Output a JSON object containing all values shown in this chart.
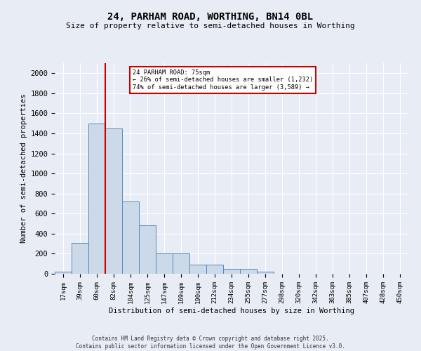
{
  "title": "24, PARHAM ROAD, WORTHING, BN14 0BL",
  "subtitle": "Size of property relative to semi-detached houses in Worthing",
  "xlabel": "Distribution of semi-detached houses by size in Worthing",
  "ylabel": "Number of semi-detached properties",
  "bar_color": "#ccd9e8",
  "bar_edge_color": "#5588bb",
  "background_color": "#e8edf5",
  "grid_color": "#ffffff",
  "categories": [
    "17sqm",
    "39sqm",
    "60sqm",
    "82sqm",
    "104sqm",
    "125sqm",
    "147sqm",
    "169sqm",
    "190sqm",
    "212sqm",
    "234sqm",
    "255sqm",
    "277sqm",
    "298sqm",
    "320sqm",
    "342sqm",
    "363sqm",
    "385sqm",
    "407sqm",
    "428sqm",
    "450sqm"
  ],
  "values": [
    20,
    310,
    1500,
    1450,
    720,
    480,
    200,
    200,
    90,
    90,
    47,
    47,
    20,
    0,
    0,
    0,
    0,
    0,
    0,
    0,
    0
  ],
  "ylim": [
    0,
    2100
  ],
  "yticks": [
    0,
    200,
    400,
    600,
    800,
    1000,
    1200,
    1400,
    1600,
    1800,
    2000
  ],
  "property_label": "24 PARHAM ROAD: 75sqm",
  "pct_smaller": 26,
  "pct_larger": 74,
  "count_smaller": 1232,
  "count_larger": 3589,
  "red_line_x": 2.5,
  "annotation_box_color": "#ffffff",
  "annotation_box_edge": "#cc0000",
  "red_line_color": "#cc0000",
  "footer_line1": "Contains HM Land Registry data © Crown copyright and database right 2025.",
  "footer_line2": "Contains public sector information licensed under the Open Government Licence v3.0."
}
